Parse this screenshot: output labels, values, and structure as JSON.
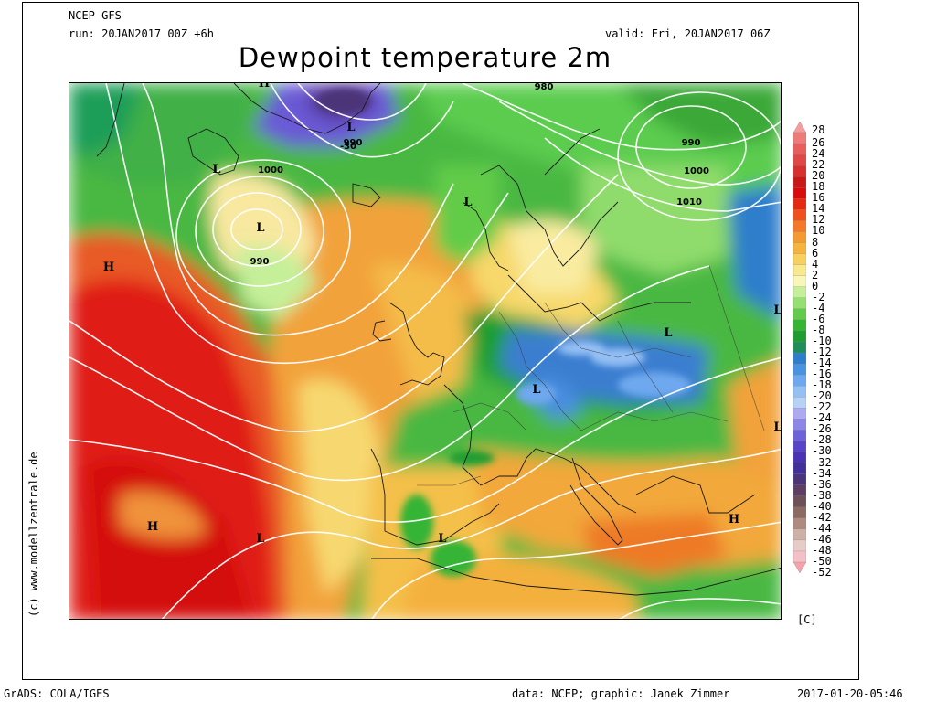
{
  "header": {
    "model": "NCEP GFS",
    "run": "run: 20JAN2017 00Z +6h",
    "valid": "valid: Fri, 20JAN2017 06Z",
    "title": "Dewpoint temperature 2m"
  },
  "credit_vertical": "(c) www.modellzentrale.de",
  "footer": {
    "left": "GrADS: COLA/IGES",
    "right": "data: NCEP; graphic: Janek Zimmer",
    "timestamp": "2017-01-20-05:46"
  },
  "legend": {
    "unit": "[C]",
    "entries": [
      {
        "label": "28",
        "color": "#f59c9c"
      },
      {
        "label": "26",
        "color": "#ee7a7a"
      },
      {
        "label": "24",
        "color": "#e85e5e"
      },
      {
        "label": "22",
        "color": "#e04848"
      },
      {
        "label": "20",
        "color": "#d63030"
      },
      {
        "label": "18",
        "color": "#c81818"
      },
      {
        "label": "16",
        "color": "#d80c0c"
      },
      {
        "label": "14",
        "color": "#e62a12"
      },
      {
        "label": "12",
        "color": "#f0501a"
      },
      {
        "label": "10",
        "color": "#f47828"
      },
      {
        "label": "8",
        "color": "#f49a30"
      },
      {
        "label": "6",
        "color": "#f6b43e"
      },
      {
        "label": "4",
        "color": "#f8d060"
      },
      {
        "label": "2",
        "color": "#fae88c"
      },
      {
        "label": "0",
        "color": "#f8f6b8"
      },
      {
        "label": "-2",
        "color": "#c6ef9a"
      },
      {
        "label": "-4",
        "color": "#94e070"
      },
      {
        "label": "-6",
        "color": "#62cc4a"
      },
      {
        "label": "-8",
        "color": "#36b434"
      },
      {
        "label": "-10",
        "color": "#1e9e30"
      },
      {
        "label": "-12",
        "color": "#1e8e5a"
      },
      {
        "label": "-14",
        "color": "#2e7ecc"
      },
      {
        "label": "-16",
        "color": "#4a92e2"
      },
      {
        "label": "-18",
        "color": "#6ea8ee"
      },
      {
        "label": "-20",
        "color": "#94c0f4"
      },
      {
        "label": "-22",
        "color": "#b6d2f6"
      },
      {
        "label": "-24",
        "color": "#aeaaf0"
      },
      {
        "label": "-26",
        "color": "#8e86e6"
      },
      {
        "label": "-28",
        "color": "#6e62d8"
      },
      {
        "label": "-30",
        "color": "#5844c8"
      },
      {
        "label": "-32",
        "color": "#4a32b2"
      },
      {
        "label": "-34",
        "color": "#42309a"
      },
      {
        "label": "-36",
        "color": "#4c3478"
      },
      {
        "label": "-38",
        "color": "#5e3e62"
      },
      {
        "label": "-40",
        "color": "#6e5058"
      },
      {
        "label": "-42",
        "color": "#8c6a62"
      },
      {
        "label": "-44",
        "color": "#ae8a80"
      },
      {
        "label": "-46",
        "color": "#cfb0a6"
      },
      {
        "label": "-48",
        "color": "#e6cbc6"
      },
      {
        "label": "-50",
        "color": "#f2c0c6"
      },
      {
        "label": "-52",
        "color": "#f6a0aa"
      }
    ]
  },
  "pressure_centers": [
    {
      "type": "L",
      "label": "L"
    },
    {
      "type": "L",
      "label": "L"
    },
    {
      "type": "L",
      "label": "L"
    },
    {
      "type": "L",
      "label": "L"
    },
    {
      "type": "L",
      "label": "L"
    },
    {
      "type": "L",
      "label": "L"
    },
    {
      "type": "L",
      "label": "L"
    },
    {
      "type": "L",
      "label": "L"
    },
    {
      "type": "L",
      "label": "L"
    },
    {
      "type": "L",
      "label": "L"
    },
    {
      "type": "H",
      "label": "H"
    },
    {
      "type": "H",
      "label": "H"
    },
    {
      "type": "H",
      "label": "H"
    },
    {
      "type": "H",
      "label": "H"
    }
  ],
  "isobar_labels": [
    "990",
    "1000",
    "990",
    "-30",
    "980",
    "990",
    "1000",
    "1010"
  ]
}
